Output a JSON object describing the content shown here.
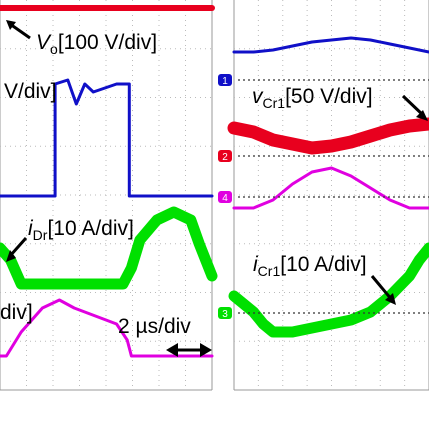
{
  "chart_data": [
    {
      "type": "line",
      "panel": "left",
      "grid": true,
      "channel_markers": [],
      "annotations": {
        "vo": {
          "prefix": "V",
          "sub": "o",
          "text": "[100 V/div]"
        },
        "v_partial": {
          "text": "V/div]"
        },
        "idr": {
          "prefix": "i",
          "sub": "Dr",
          "text": "[10 A/div]"
        },
        "div_partial": {
          "text": "div]"
        },
        "time": {
          "text": "2 µs/div"
        }
      },
      "series": [
        {
          "color": "#e8001e",
          "x": [
            0,
            10
          ],
          "y": [
            0.3,
            0.3
          ]
        },
        {
          "color": "#1010c8",
          "x": [
            0,
            2.6,
            2.6,
            3.2,
            3.6,
            4.0,
            4.4,
            5.5,
            6.1,
            6.1,
            10
          ],
          "y": [
            5.0,
            5.0,
            2.2,
            2.1,
            2.7,
            2.2,
            2.4,
            2.2,
            2.2,
            5.0,
            5.0
          ]
        },
        {
          "color": "#00e000",
          "x": [
            0,
            0.5,
            1.0,
            3.0,
            5.8,
            6.2,
            6.6,
            7.4,
            8.2,
            9.0,
            9.4,
            10
          ],
          "y": [
            6.3,
            6.6,
            7.2,
            7.2,
            7.2,
            6.8,
            6.1,
            5.6,
            5.4,
            5.6,
            6.2,
            7.0
          ]
        },
        {
          "color": "#e000e0",
          "x": [
            0,
            0.3,
            1.0,
            2.0,
            2.8,
            3.5,
            4.5,
            5.5,
            6.0,
            6.2,
            10
          ],
          "y": [
            9.0,
            9.0,
            8.4,
            7.8,
            7.6,
            7.8,
            8.0,
            8.2,
            8.6,
            9.0,
            9.0
          ]
        }
      ]
    },
    {
      "type": "line",
      "panel": "right",
      "grid": true,
      "channel_markers": [
        "1",
        "2",
        "4",
        "3"
      ],
      "annotations": {
        "vcr": {
          "prefix": "v",
          "sub": "Cr1",
          "text": "[50 V/div]"
        },
        "icr": {
          "prefix": "i",
          "sub": "Cr1",
          "text": "[10 A/div]"
        }
      },
      "series": [
        {
          "color": "#1010c8",
          "x": [
            0,
            1,
            2,
            3,
            4,
            5,
            6,
            7,
            8,
            9,
            10
          ],
          "y": [
            1.3,
            1.3,
            1.25,
            1.15,
            1.05,
            1.0,
            0.95,
            1.0,
            1.1,
            1.2,
            1.3
          ]
        },
        {
          "color": "#e8001e",
          "x": [
            0,
            1,
            2,
            3,
            4,
            5,
            6,
            7,
            8,
            9,
            10
          ],
          "y": [
            3.2,
            3.3,
            3.5,
            3.6,
            3.7,
            3.65,
            3.55,
            3.4,
            3.25,
            3.15,
            3.1
          ]
        },
        {
          "color": "#e000e0",
          "x": [
            0,
            1,
            2,
            3,
            4,
            5,
            6,
            7,
            8,
            9,
            10
          ],
          "y": [
            5.2,
            5.2,
            5.0,
            4.6,
            4.3,
            4.2,
            4.4,
            4.7,
            5.0,
            5.2,
            5.2
          ]
        },
        {
          "color": "#00e000",
          "x": [
            0,
            0.5,
            1,
            1.5,
            2,
            3,
            4,
            5,
            6,
            7,
            8,
            9,
            9.5,
            10
          ],
          "y": [
            7.4,
            7.6,
            7.8,
            8.1,
            8.3,
            8.3,
            8.2,
            8.1,
            8.0,
            7.8,
            7.4,
            6.9,
            6.5,
            6.2
          ]
        }
      ]
    }
  ]
}
